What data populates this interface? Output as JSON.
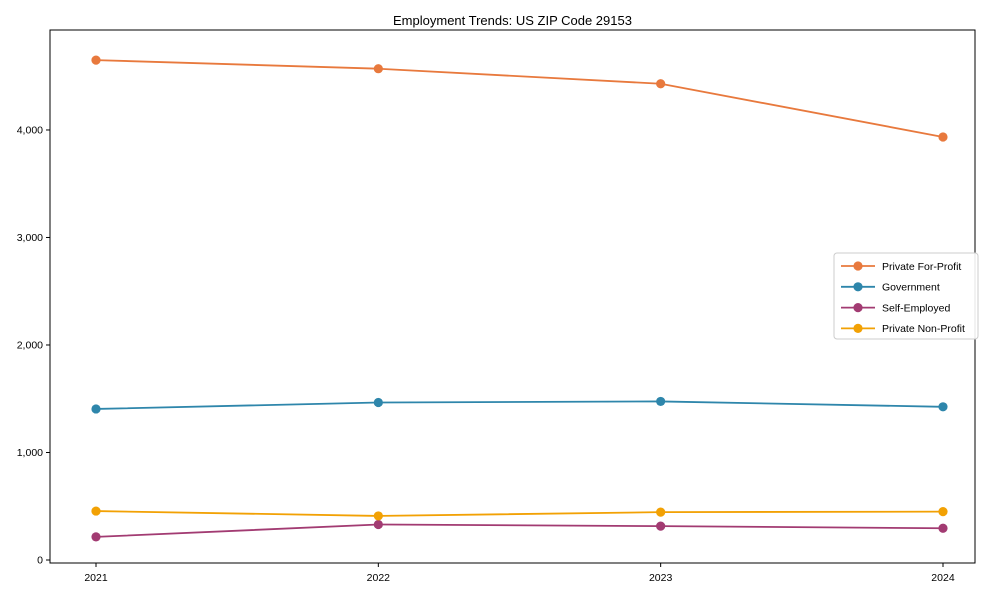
{
  "chart_data": {
    "type": "line",
    "title": "Employment Trends: US ZIP Code 29153",
    "categories": [
      "2021",
      "2022",
      "2023",
      "2024"
    ],
    "series": [
      {
        "name": "Private For-Profit",
        "color": "#E8793D",
        "values": [
          4650,
          4570,
          4430,
          3935
        ]
      },
      {
        "name": "Government",
        "color": "#2E86AB",
        "values": [
          1405,
          1465,
          1475,
          1425
        ]
      },
      {
        "name": "Self-Employed",
        "color": "#A23B72",
        "values": [
          215,
          330,
          315,
          295
        ]
      },
      {
        "name": "Private Non-Profit",
        "color": "#F2A104",
        "values": [
          455,
          410,
          445,
          450
        ]
      }
    ],
    "xlabel": "",
    "ylabel": "",
    "yticks": [
      0,
      1000,
      2000,
      3000,
      4000
    ],
    "ytick_labels": [
      "0",
      "1,000",
      "2,000",
      "3,000",
      "4,000"
    ],
    "ylim": [
      -28,
      4930
    ],
    "grid": false,
    "legend_position": "right-middle",
    "marker": "circle",
    "axis_color": "#000000",
    "legend_border_color": "#cccccc",
    "legend_background": "#ffffff"
  }
}
